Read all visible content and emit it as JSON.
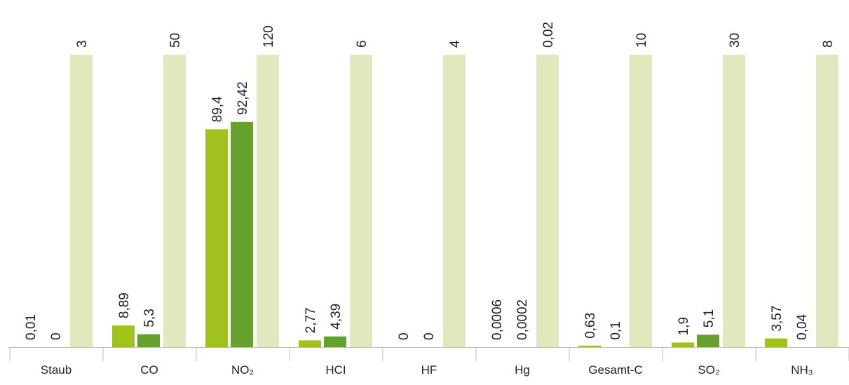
{
  "chart_data": {
    "type": "bar",
    "title": "",
    "xlabel": "",
    "ylabel": "",
    "categories": [
      "Staub",
      "CO",
      "NO₂",
      "HCI",
      "HF",
      "Hg",
      "Gesamt-C",
      "SO₂",
      "NH₃"
    ],
    "series": [
      {
        "values": [
          0.01,
          8.89,
          89.4,
          2.77,
          0,
          0.0006,
          0.63,
          1.9,
          3.57
        ],
        "labels": [
          "0,01",
          "8,89",
          "89,4",
          "2,77",
          "0",
          "0,0006",
          "0,63",
          "1,9",
          "3,57"
        ],
        "color": "#a1c21d"
      },
      {
        "values": [
          0,
          5.3,
          92.42,
          4.39,
          0,
          0.0002,
          0.1,
          5.1,
          0.04
        ],
        "labels": [
          "0",
          "5,3",
          "92,42",
          "4,39",
          "0",
          "0,0002",
          "0,1",
          "5,1",
          "0,04"
        ],
        "color": "#66a12e"
      },
      {
        "values": [
          3,
          50,
          120,
          6,
          4,
          0.02,
          10,
          30,
          8
        ],
        "labels": [
          "3",
          "50",
          "120",
          "6",
          "4",
          "0,02",
          "10",
          "30",
          "8"
        ],
        "color": "#e0e8bd",
        "full_height": true
      }
    ],
    "ylim": [
      0,
      120
    ],
    "grid": false,
    "legend": "none"
  }
}
